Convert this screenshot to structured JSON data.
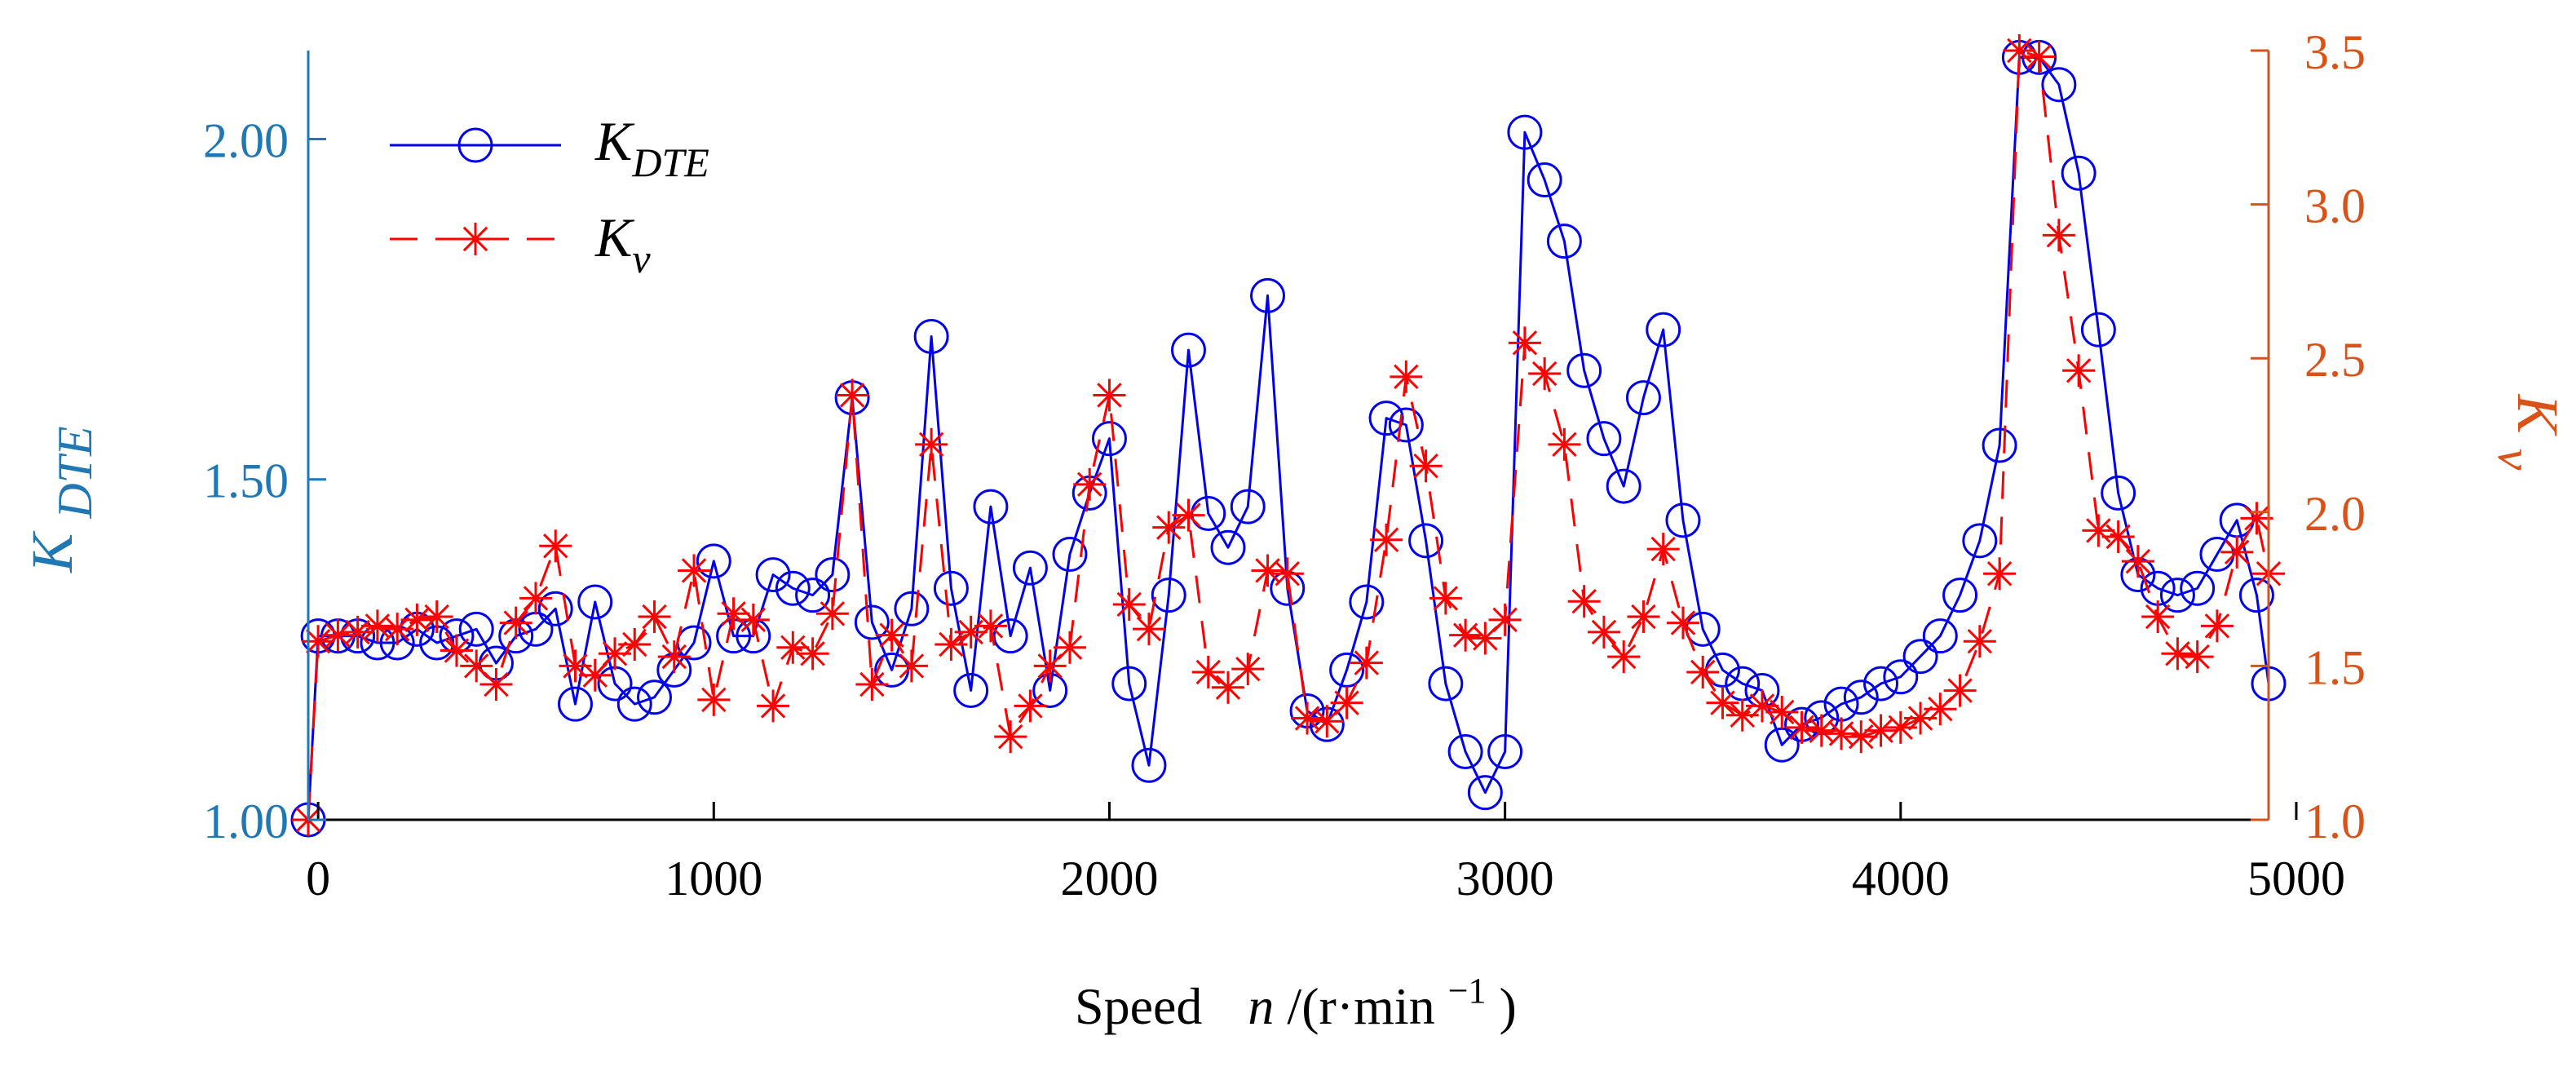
{
  "colors": {
    "left_axis": "#1f77b4",
    "right_axis": "#d95319",
    "kdte_series": "#0000ee",
    "kv_series": "#ff0000",
    "axis": "#000000"
  },
  "chart_data": {
    "type": "line",
    "xlabel": {
      "prefix": "Speed",
      "var": "n",
      "mid": "/(r·min",
      "sup": "−1",
      "suffix": ")"
    },
    "ylabel_left": {
      "main": "K",
      "sub": "DTE"
    },
    "ylabel_right": {
      "main": "K",
      "sub": "v"
    },
    "xlim": [
      -25,
      4930
    ],
    "ylim_left": [
      1.0,
      2.13
    ],
    "ylim_right": [
      1.0,
      3.5
    ],
    "x_ticks": [
      0,
      1000,
      2000,
      3000,
      4000,
      5000
    ],
    "x_tick_labels": [
      "0",
      "1000",
      "2000",
      "3000",
      "4000",
      "5000"
    ],
    "y_left_ticks": [
      1.0,
      1.5,
      2.0
    ],
    "y_left_tick_labels": [
      "1.00",
      "1.50",
      "2.00"
    ],
    "y_right_ticks": [
      1.0,
      1.5,
      2.0,
      2.5,
      3.0,
      3.5
    ],
    "y_right_tick_labels": [
      "1.0",
      "1.5",
      "2.0",
      "2.5",
      "3.0",
      "3.5"
    ],
    "legend": {
      "position": "top-left",
      "entries": [
        {
          "main": "K",
          "sub": "DTE",
          "style": "solid-circle"
        },
        {
          "main": "K",
          "sub": "v",
          "style": "dashed-star"
        }
      ]
    },
    "series": [
      {
        "name": "K_DTE",
        "axis": "left",
        "x": [
          -25,
          0,
          50,
          100,
          150,
          200,
          250,
          300,
          350,
          400,
          450,
          500,
          550,
          600,
          650,
          700,
          750,
          800,
          850,
          900,
          950,
          1000,
          1050,
          1100,
          1150,
          1200,
          1250,
          1300,
          1350,
          1400,
          1450,
          1500,
          1550,
          1600,
          1650,
          1700,
          1750,
          1800,
          1850,
          1900,
          1950,
          2000,
          2050,
          2100,
          2150,
          2200,
          2250,
          2300,
          2350,
          2400,
          2450,
          2500,
          2550,
          2600,
          2650,
          2700,
          2750,
          2800,
          2850,
          2900,
          2950,
          3000,
          3050,
          3100,
          3150,
          3200,
          3250,
          3300,
          3350,
          3400,
          3450,
          3500,
          3550,
          3600,
          3650,
          3700,
          3750,
          3800,
          3850,
          3900,
          3950,
          4000,
          4050,
          4100,
          4150,
          4200,
          4250,
          4300,
          4350,
          4400,
          4450,
          4500,
          4550,
          4600,
          4650,
          4700,
          4750,
          4800,
          4850,
          4900,
          4930
        ],
        "values": [
          1.0,
          1.27,
          1.27,
          1.27,
          1.26,
          1.26,
          1.28,
          1.26,
          1.27,
          1.28,
          1.23,
          1.27,
          1.28,
          1.31,
          1.17,
          1.32,
          1.2,
          1.17,
          1.18,
          1.22,
          1.26,
          1.38,
          1.27,
          1.27,
          1.36,
          1.34,
          1.33,
          1.36,
          1.62,
          1.29,
          1.22,
          1.31,
          1.71,
          1.34,
          1.19,
          1.46,
          1.27,
          1.37,
          1.19,
          1.39,
          1.48,
          1.56,
          1.2,
          1.08,
          1.33,
          1.69,
          1.45,
          1.4,
          1.46,
          1.77,
          1.34,
          1.16,
          1.14,
          1.22,
          1.32,
          1.59,
          1.58,
          1.41,
          1.2,
          1.1,
          1.04,
          1.1,
          2.01,
          1.94,
          1.85,
          1.66,
          1.56,
          1.49,
          1.62,
          1.72,
          1.44,
          1.28,
          1.22,
          1.2,
          1.19,
          1.11,
          1.14,
          1.15,
          1.17,
          1.18,
          1.2,
          1.21,
          1.24,
          1.27,
          1.33,
          1.41,
          1.55,
          2.12,
          2.12,
          2.08,
          1.95,
          1.72,
          1.48,
          1.36,
          1.34,
          1.33,
          1.34,
          1.39,
          1.44,
          1.33,
          1.2
        ]
      },
      {
        "name": "K_v",
        "axis": "right",
        "x": [
          -25,
          0,
          50,
          100,
          150,
          200,
          250,
          300,
          350,
          400,
          450,
          500,
          550,
          600,
          650,
          700,
          750,
          800,
          850,
          900,
          950,
          1000,
          1050,
          1100,
          1150,
          1200,
          1250,
          1300,
          1350,
          1400,
          1450,
          1500,
          1550,
          1600,
          1650,
          1700,
          1750,
          1800,
          1850,
          1900,
          1950,
          2000,
          2050,
          2100,
          2150,
          2200,
          2250,
          2300,
          2350,
          2400,
          2450,
          2500,
          2550,
          2600,
          2650,
          2700,
          2750,
          2800,
          2850,
          2900,
          2950,
          3000,
          3050,
          3100,
          3150,
          3200,
          3250,
          3300,
          3350,
          3400,
          3450,
          3500,
          3550,
          3600,
          3650,
          3700,
          3750,
          3800,
          3850,
          3900,
          3950,
          4000,
          4050,
          4100,
          4150,
          4200,
          4250,
          4300,
          4350,
          4400,
          4450,
          4500,
          4550,
          4600,
          4650,
          4700,
          4750,
          4800,
          4850,
          4900,
          4930
        ],
        "values": [
          1.0,
          1.58,
          1.6,
          1.61,
          1.63,
          1.62,
          1.65,
          1.66,
          1.55,
          1.5,
          1.44,
          1.64,
          1.72,
          1.89,
          1.5,
          1.47,
          1.54,
          1.57,
          1.66,
          1.53,
          1.81,
          1.39,
          1.67,
          1.65,
          1.37,
          1.56,
          1.54,
          1.67,
          2.38,
          1.44,
          1.6,
          1.5,
          2.22,
          1.57,
          1.61,
          1.63,
          1.27,
          1.37,
          1.5,
          1.56,
          2.09,
          2.38,
          1.7,
          1.62,
          1.95,
          1.99,
          1.48,
          1.43,
          1.49,
          1.81,
          1.8,
          1.33,
          1.32,
          1.38,
          1.51,
          1.91,
          2.44,
          2.15,
          1.72,
          1.6,
          1.59,
          1.65,
          2.55,
          2.45,
          2.22,
          1.71,
          1.61,
          1.53,
          1.66,
          1.88,
          1.64,
          1.48,
          1.38,
          1.34,
          1.37,
          1.35,
          1.3,
          1.29,
          1.28,
          1.27,
          1.29,
          1.3,
          1.33,
          1.36,
          1.42,
          1.58,
          1.8,
          3.5,
          3.48,
          2.9,
          2.46,
          1.94,
          1.92,
          1.84,
          1.66,
          1.54,
          1.53,
          1.63,
          1.87,
          1.98,
          1.8
        ]
      }
    ]
  }
}
